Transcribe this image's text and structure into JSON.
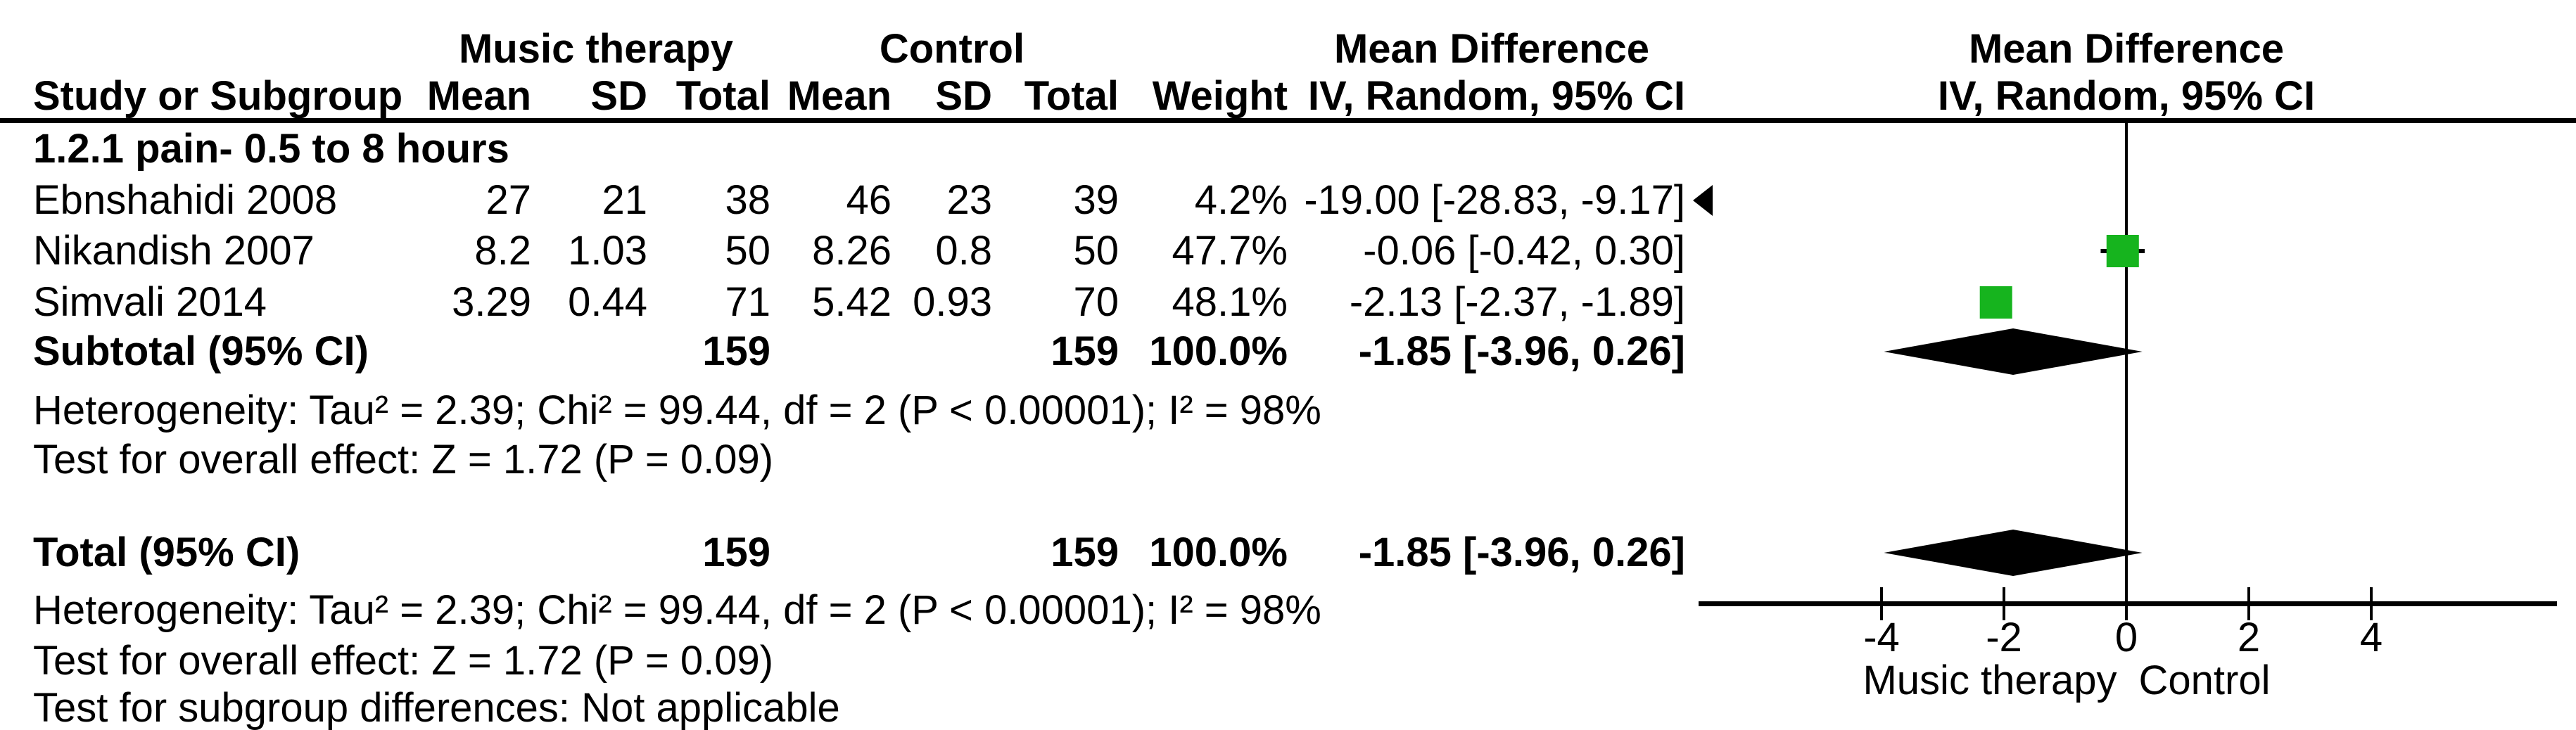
{
  "chart_data": {
    "type": "scatter",
    "variant": "forest_plot_mean_difference",
    "table_headers": {
      "group1": "Music therapy",
      "group2": "Control",
      "effect": "Mean Difference",
      "study_col": "Study or Subgroup",
      "col_headers": [
        "Mean",
        "SD",
        "Total",
        "Mean",
        "SD",
        "Total",
        "Weight",
        "IV, Random, 95% CI"
      ],
      "plot_effect": "Mean Difference",
      "plot_method": "IV, Random, 95% CI"
    },
    "subgroup": {
      "label": "1.2.1 pain- 0.5 to 8 hours",
      "studies": [
        {
          "name": "Ebnshahidi 2008",
          "cells": [
            "27",
            "21",
            "38",
            "46",
            "23",
            "39",
            "4.2%",
            "-19.00 [-28.83, -9.17]"
          ],
          "md": -19.0,
          "ci_low": -28.83,
          "ci_high": -9.17,
          "weight_pct": 4.2,
          "offscale_left": true
        },
        {
          "name": "Nikandish 2007",
          "cells": [
            "8.2",
            "1.03",
            "50",
            "8.26",
            "0.8",
            "50",
            "47.7%",
            "-0.06 [-0.42, 0.30]"
          ],
          "md": -0.06,
          "ci_low": -0.42,
          "ci_high": 0.3,
          "weight_pct": 47.7,
          "offscale_left": false
        },
        {
          "name": "Simvali 2014",
          "cells": [
            "3.29",
            "0.44",
            "71",
            "5.42",
            "0.93",
            "70",
            "48.1%",
            "-2.13 [-2.37, -1.89]"
          ],
          "md": -2.13,
          "ci_low": -2.37,
          "ci_high": -1.89,
          "weight_pct": 48.1,
          "offscale_left": false
        }
      ],
      "subtotal": {
        "label": "Subtotal (95% CI)",
        "cells": [
          "",
          "",
          "159",
          "",
          "",
          "159",
          "100.0%",
          "-1.85 [-3.96, 0.26]"
        ],
        "md": -1.85,
        "ci_low": -3.96,
        "ci_high": 0.26
      },
      "heterogeneity": "Heterogeneity: Tau² = 2.39; Chi² = 99.44, df = 2 (P < 0.00001); I² = 98%",
      "overall_effect": "Test for overall effect: Z = 1.72 (P = 0.09)"
    },
    "total_row": {
      "label": "Total (95% CI)",
      "cells": [
        "",
        "",
        "159",
        "",
        "",
        "159",
        "100.0%",
        "-1.85 [-3.96, 0.26]"
      ],
      "md": -1.85,
      "ci_low": -3.96,
      "ci_high": 0.26,
      "heterogeneity": "Heterogeneity: Tau² = 2.39; Chi² = 99.44, df = 2 (P < 0.00001); I² = 98%",
      "overall_effect": "Test for overall effect: Z = 1.72 (P = 0.09)"
    },
    "subgroup_diff": "Test for subgroup differences: Not applicable",
    "axis": {
      "ticks": [
        -4,
        -2,
        0,
        2,
        4
      ],
      "tick_labels": [
        "-4",
        "-2",
        "0",
        "2",
        "4"
      ],
      "xlim": [
        -7,
        7
      ],
      "favour_left": "Music therapy",
      "favour_right": "Control"
    },
    "colors": {
      "square": "#16B41E",
      "diamond": "#000000",
      "line": "#000000"
    }
  }
}
